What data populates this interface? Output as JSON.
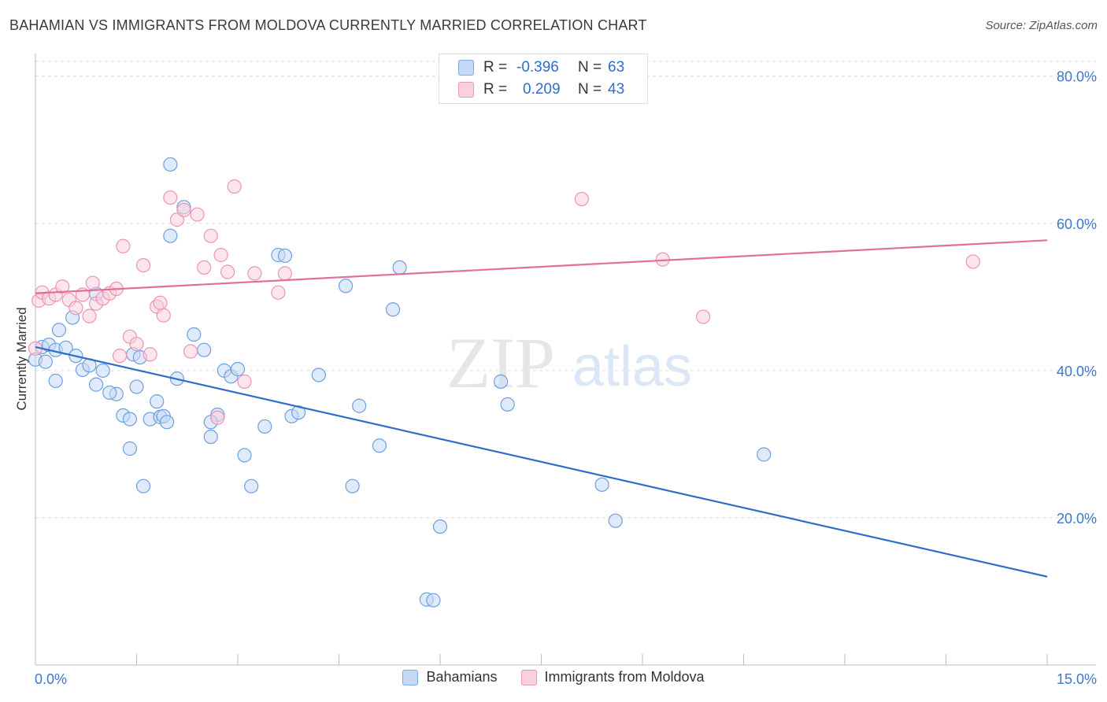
{
  "header": {
    "title": "BAHAMIAN VS IMMIGRANTS FROM MOLDOVA CURRENTLY MARRIED CORRELATION CHART",
    "source": "Source: ZipAtlas.com"
  },
  "watermark": {
    "zip": "ZIP",
    "atlas": "atlas"
  },
  "stats_legend": {
    "rows": [
      {
        "r_label": "R =",
        "r_value": "-0.396",
        "n_label": "N =",
        "n_value": "63",
        "color": "#c5d8f5"
      },
      {
        "r_label": "R =",
        "r_value": "0.209",
        "n_label": "N =",
        "n_value": "43",
        "color": "#fad0dc"
      }
    ]
  },
  "chart_data": {
    "type": "scatter",
    "title": "BAHAMIAN VS IMMIGRANTS FROM MOLDOVA CURRENTLY MARRIED CORRELATION CHART",
    "xlabel": "",
    "ylabel": "Currently Married",
    "xlim": [
      0,
      15
    ],
    "ylim": [
      0,
      82
    ],
    "x_tick_labels": [
      "0.0%",
      "15.0%"
    ],
    "y_tick_labels": [
      "20.0%",
      "40.0%",
      "60.0%",
      "80.0%"
    ],
    "y_ticks": [
      20,
      40,
      60,
      80
    ],
    "grid": true,
    "legend_position": "bottom",
    "series": [
      {
        "name": "Bahamians",
        "color": "#6f9fdc",
        "fill": "#c5d8f5",
        "trend": {
          "x": [
            0.0,
            15.0
          ],
          "y": [
            43.2,
            12.0
          ],
          "color": "#2e6ec9"
        },
        "points": [
          [
            0.0,
            41.5
          ],
          [
            0.1,
            43.2
          ],
          [
            0.15,
            41.2
          ],
          [
            0.2,
            43.5
          ],
          [
            0.3,
            42.8
          ],
          [
            0.35,
            45.5
          ],
          [
            0.45,
            43.1
          ],
          [
            0.6,
            42.0
          ],
          [
            0.7,
            40.1
          ],
          [
            0.8,
            40.7
          ],
          [
            0.9,
            38.1
          ],
          [
            1.0,
            40.0
          ],
          [
            1.2,
            36.8
          ],
          [
            1.3,
            33.9
          ],
          [
            1.4,
            29.4
          ],
          [
            1.45,
            42.2
          ],
          [
            1.5,
            37.8
          ],
          [
            1.6,
            24.3
          ],
          [
            1.7,
            33.4
          ],
          [
            1.8,
            35.8
          ],
          [
            1.85,
            33.7
          ],
          [
            1.9,
            33.8
          ],
          [
            2.0,
            58.3
          ],
          [
            2.1,
            38.9
          ],
          [
            2.2,
            62.2
          ],
          [
            2.35,
            44.9
          ],
          [
            2.5,
            42.8
          ],
          [
            2.6,
            31.0
          ],
          [
            2.7,
            34.0
          ],
          [
            2.8,
            40.0
          ],
          [
            2.9,
            39.2
          ],
          [
            3.0,
            40.2
          ],
          [
            3.1,
            28.5
          ],
          [
            3.2,
            24.3
          ],
          [
            3.4,
            32.4
          ],
          [
            3.6,
            55.7
          ],
          [
            3.7,
            55.6
          ],
          [
            3.8,
            33.8
          ],
          [
            4.2,
            39.4
          ],
          [
            4.6,
            51.5
          ],
          [
            4.7,
            24.3
          ],
          [
            4.8,
            35.2
          ],
          [
            5.1,
            29.8
          ],
          [
            5.3,
            48.3
          ],
          [
            5.4,
            54.0
          ],
          [
            5.8,
            8.9
          ],
          [
            5.9,
            8.8
          ],
          [
            6.0,
            18.8
          ],
          [
            6.9,
            38.5
          ],
          [
            7.0,
            35.4
          ],
          [
            8.4,
            24.5
          ],
          [
            8.6,
            19.6
          ],
          [
            2.0,
            68.0
          ],
          [
            1.4,
            33.4
          ],
          [
            2.6,
            33.0
          ],
          [
            1.1,
            37.0
          ],
          [
            0.55,
            47.2
          ],
          [
            0.9,
            50.4
          ],
          [
            3.9,
            34.3
          ],
          [
            0.3,
            38.6
          ],
          [
            1.95,
            33.0
          ],
          [
            1.55,
            41.8
          ],
          [
            10.8,
            28.6
          ]
        ]
      },
      {
        "name": "Immigrants from Moldova",
        "color": "#eb95b0",
        "fill": "#fad0dc",
        "trend": {
          "x": [
            0.0,
            15.0
          ],
          "y": [
            50.5,
            57.7
          ],
          "color": "#e0709a"
        },
        "points": [
          [
            0.0,
            43.0
          ],
          [
            0.05,
            49.5
          ],
          [
            0.1,
            50.6
          ],
          [
            0.2,
            49.8
          ],
          [
            0.3,
            50.3
          ],
          [
            0.4,
            51.4
          ],
          [
            0.5,
            49.6
          ],
          [
            0.6,
            48.5
          ],
          [
            0.7,
            50.3
          ],
          [
            0.8,
            47.4
          ],
          [
            0.9,
            49.1
          ],
          [
            1.0,
            49.8
          ],
          [
            1.1,
            50.5
          ],
          [
            1.2,
            51.1
          ],
          [
            1.3,
            56.9
          ],
          [
            1.4,
            44.6
          ],
          [
            1.5,
            43.6
          ],
          [
            1.6,
            54.3
          ],
          [
            1.7,
            42.2
          ],
          [
            1.8,
            48.7
          ],
          [
            1.85,
            49.2
          ],
          [
            1.9,
            47.5
          ],
          [
            2.0,
            63.5
          ],
          [
            2.1,
            60.5
          ],
          [
            2.2,
            61.8
          ],
          [
            2.3,
            42.6
          ],
          [
            2.4,
            61.2
          ],
          [
            2.5,
            54.0
          ],
          [
            2.6,
            58.3
          ],
          [
            2.7,
            33.6
          ],
          [
            2.75,
            55.7
          ],
          [
            2.85,
            53.4
          ],
          [
            2.95,
            65.0
          ],
          [
            3.1,
            38.5
          ],
          [
            3.25,
            53.2
          ],
          [
            3.6,
            50.6
          ],
          [
            3.7,
            53.2
          ],
          [
            8.1,
            63.3
          ],
          [
            9.3,
            55.1
          ],
          [
            9.9,
            47.3
          ],
          [
            13.9,
            54.8
          ],
          [
            0.85,
            51.9
          ],
          [
            1.25,
            42.0
          ]
        ]
      }
    ]
  }
}
